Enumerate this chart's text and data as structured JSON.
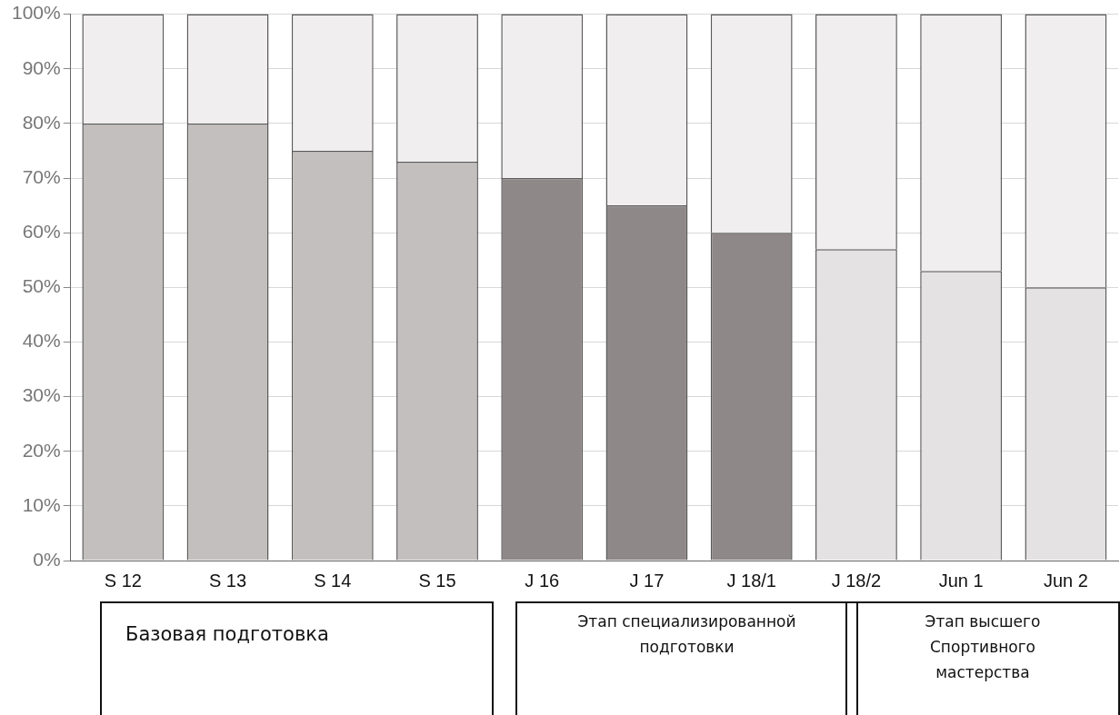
{
  "chart_data": {
    "type": "bar",
    "stacked": true,
    "categories": [
      "S 12",
      "S 13",
      "S 14",
      "S 15",
      "J 16",
      "J 17",
      "J 18/1",
      "J 18/2",
      "Jun 1",
      "Jun 2"
    ],
    "series": [
      {
        "colors": [
          "#c4bfbf",
          "#c4bfbf",
          "#c4bfbf",
          "#c4bfbf",
          "#8f8888",
          "#8f8888",
          "#8f8888",
          "#e4e2e2",
          "#e4e2e2",
          "#e4e2e2"
        ],
        "values": [
          80,
          80,
          75,
          73,
          70,
          65,
          60,
          57,
          53,
          50
        ]
      },
      {
        "color": "#f0eeee",
        "values": [
          20,
          20,
          25,
          27,
          30,
          35,
          40,
          43,
          47,
          50
        ]
      }
    ],
    "ylim": [
      0,
      100
    ],
    "yticks": [
      {
        "value": 0,
        "label": "0%"
      },
      {
        "value": 10,
        "label": "10%"
      },
      {
        "value": 20,
        "label": "20%"
      },
      {
        "value": 30,
        "label": "30%"
      },
      {
        "value": 40,
        "label": "40%"
      },
      {
        "value": 50,
        "label": "50%"
      },
      {
        "value": 60,
        "label": "60%"
      },
      {
        "value": 70,
        "label": "70%"
      },
      {
        "value": 80,
        "label": "80%"
      },
      {
        "value": 90,
        "label": "90%"
      },
      {
        "value": 100,
        "label": "100%"
      }
    ],
    "grid": "y",
    "legend": false,
    "annotations": [
      "Базовая подготовка",
      "Этап специализированной подготовки",
      "Этап высшего Спортивного мастерства"
    ]
  }
}
